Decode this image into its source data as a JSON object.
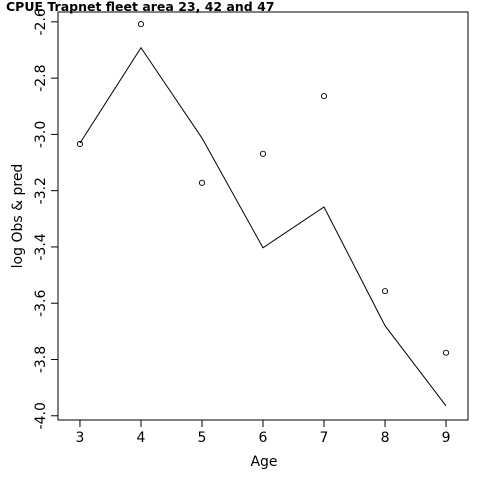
{
  "chart_data": {
    "type": "line",
    "title": "CPUE Trapnet fleet area 23, 42 and 47",
    "xlabel": "Age",
    "ylabel": "log Obs & pred",
    "x": [
      3,
      4,
      5,
      6,
      7,
      8,
      9
    ],
    "xlim": [
      2.64,
      9.36
    ],
    "ylim": [
      -4.015,
      -2.565
    ],
    "x_ticks": [
      "3",
      "4",
      "5",
      "6",
      "7",
      "8",
      "9"
    ],
    "y_ticks": [
      "-2.6",
      "-2.8",
      "-3.0",
      "-3.2",
      "-3.4",
      "-3.6",
      "-3.8",
      "-4.0"
    ],
    "series": [
      {
        "style": "points",
        "values": [
          -3.034,
          -2.608,
          -3.172,
          -3.069,
          -2.864,
          -3.557,
          -3.776
        ]
      },
      {
        "style": "line",
        "values": [
          -3.031,
          -2.692,
          -3.013,
          -3.403,
          -3.258,
          -3.68,
          -3.965
        ]
      }
    ],
    "grid": false,
    "legend": "none"
  }
}
